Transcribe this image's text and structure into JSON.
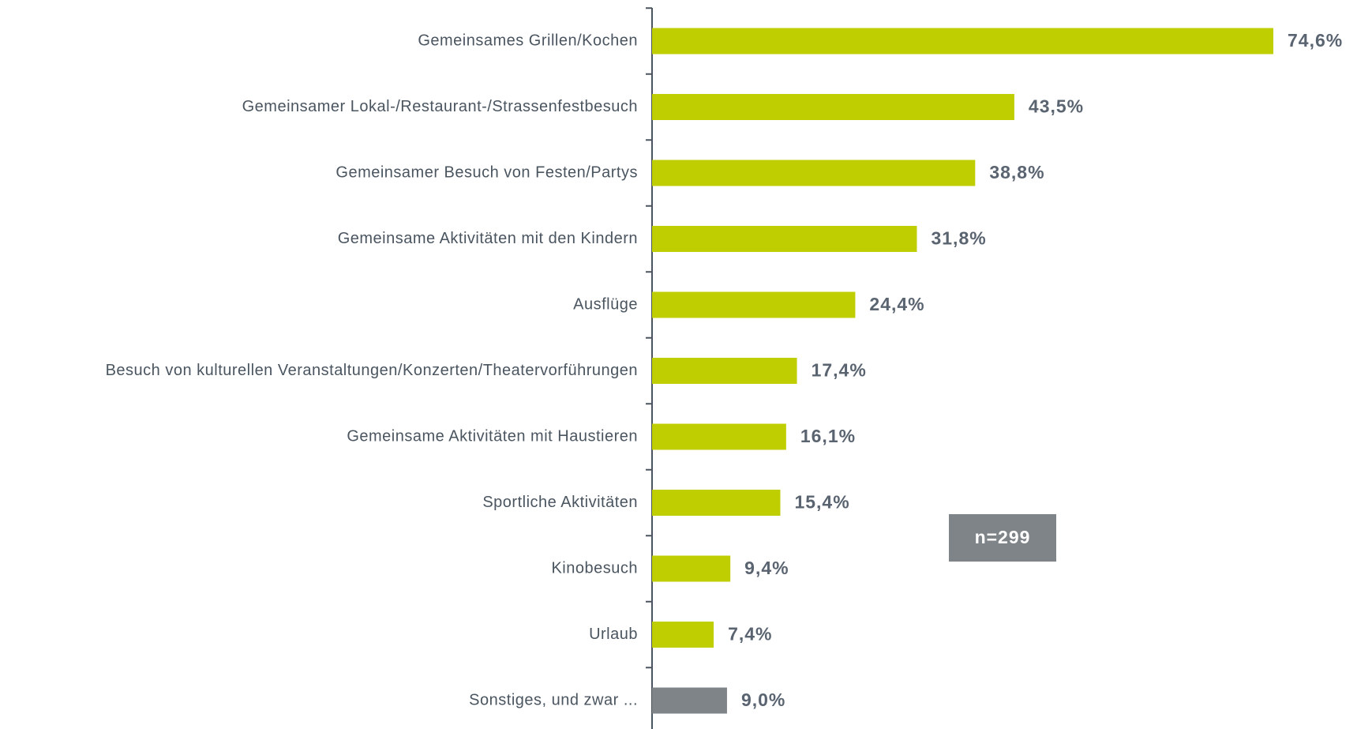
{
  "chart_data": {
    "type": "barh",
    "categories": [
      "Gemeinsames Grillen/Kochen",
      "Gemeinsamer Lokal-/Restaurant-/Strassenfestbesuch",
      "Gemeinsamer Besuch von Festen/Partys",
      "Gemeinsame Aktivitäten mit den Kindern",
      "Ausflüge",
      "Besuch von kulturellen Veranstaltungen/Konzerten/Theatervorführungen",
      "Gemeinsame Aktivitäten mit Haustieren",
      "Sportliche Aktivitäten",
      "Kinobesuch",
      "Urlaub",
      "Sonstiges, und zwar ..."
    ],
    "values": [
      74.6,
      43.5,
      38.8,
      31.8,
      24.4,
      17.4,
      16.1,
      15.4,
      9.4,
      7.4,
      9.0
    ],
    "value_labels": [
      "74,6%",
      "43,5%",
      "38,8%",
      "31,8%",
      "24,4%",
      "17,4%",
      "16,1%",
      "15,4%",
      "9,4%",
      "7,4%",
      "9,0%"
    ],
    "colors": [
      "#bfce00",
      "#bfce00",
      "#bfce00",
      "#bfce00",
      "#bfce00",
      "#bfce00",
      "#bfce00",
      "#bfce00",
      "#bfce00",
      "#bfce00",
      "#7f8489"
    ],
    "annotation": "n=299"
  }
}
